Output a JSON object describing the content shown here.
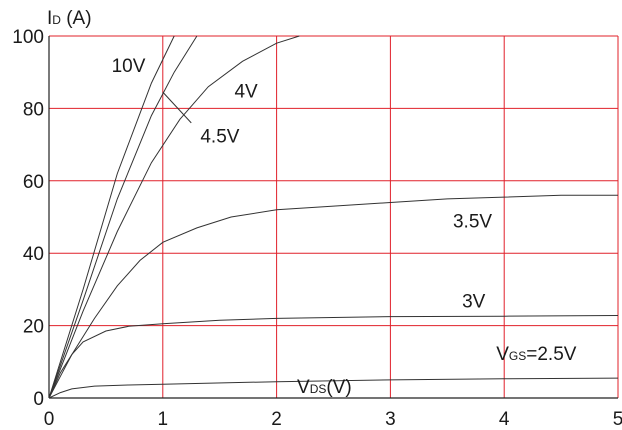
{
  "chart_data": {
    "type": "line",
    "ylabel": {
      "main": "I",
      "sub": "D",
      "rest": " (A)"
    },
    "xlabel": {
      "main": "V",
      "sub": "DS",
      "rest": "(V)"
    },
    "xlim": [
      0,
      5
    ],
    "ylim": [
      0,
      100
    ],
    "x_ticks": [
      "0",
      "1",
      "2",
      "3",
      "4",
      "5"
    ],
    "y_ticks": [
      "0",
      "20",
      "40",
      "60",
      "80",
      "100"
    ],
    "grid": true,
    "grid_color": "#e0202a",
    "line_color": "#333333",
    "series": [
      {
        "name": "10V",
        "x": [
          0,
          0.3,
          0.6,
          0.9,
          1.1
        ],
        "y": [
          0,
          30,
          62,
          87,
          100
        ]
      },
      {
        "name": "4.5V",
        "x": [
          0,
          0.3,
          0.6,
          0.9,
          1.1,
          1.3
        ],
        "y": [
          0,
          27,
          55,
          78,
          90,
          100
        ]
      },
      {
        "name": "4V",
        "x": [
          0,
          0.3,
          0.6,
          0.9,
          1.15,
          1.4,
          1.7,
          2.0,
          2.2
        ],
        "y": [
          0,
          24,
          46,
          65,
          77,
          86,
          93,
          98,
          100
        ]
      },
      {
        "name": "3.5V",
        "x": [
          0,
          0.1,
          0.2,
          0.4,
          0.6,
          0.8,
          1.0,
          1.3,
          1.6,
          2.0,
          2.5,
          3.0,
          3.5,
          4.0,
          4.5,
          5.0
        ],
        "y": [
          0,
          6,
          12,
          22,
          31,
          38,
          43,
          47,
          50,
          52,
          53,
          54,
          55,
          55.5,
          56,
          56
        ]
      },
      {
        "name": "3V",
        "x": [
          0,
          0.1,
          0.2,
          0.3,
          0.5,
          0.7,
          1.0,
          1.5,
          2.0,
          3.0,
          4.0,
          5.0
        ],
        "y": [
          0,
          7,
          12,
          15.5,
          18.5,
          19.8,
          20.5,
          21.5,
          22,
          22.5,
          22.6,
          22.8
        ]
      },
      {
        "name": "2.5V",
        "x": [
          0,
          0.1,
          0.2,
          0.4,
          0.7,
          1.0,
          2.0,
          3.0,
          4.0,
          5.0
        ],
        "y": [
          0,
          1.5,
          2.5,
          3.3,
          3.6,
          3.8,
          4.5,
          5.0,
          5.3,
          5.5
        ]
      }
    ],
    "annotations": [
      {
        "text": "10V",
        "x": 0.55,
        "y": 92
      },
      {
        "text": "4V",
        "x": 1.63,
        "y": 85
      },
      {
        "text": "4.5V",
        "x": 1.33,
        "y": 72.5
      },
      {
        "text": "3.5V",
        "x": 3.55,
        "y": 49
      },
      {
        "text": "3V",
        "x": 3.63,
        "y": 27
      },
      {
        "text": "2.5V",
        "x": 3.93,
        "y": 12.5,
        "prefix": "V",
        "prefix_sub": "GS",
        "prefix_rest": "="
      }
    ]
  }
}
